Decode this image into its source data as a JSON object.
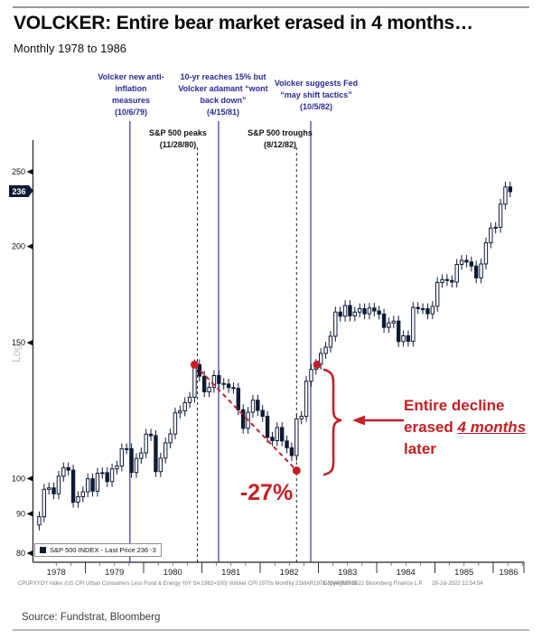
{
  "header": {
    "title": "VOLCKER: Entire bear market erased in 4 months…",
    "subtitle": "Monthly 1978 to 1986"
  },
  "annotations": {
    "note1": "Volcker new anti-\ninflation\nmeasures\n(10/6/79)",
    "note2": "10-yr reaches 15% but\nVolcker adamant “wont\nback down”\n(4/15/81)",
    "note3": "Volcker suggests Fed\n“may shift tactics”\n(10/5/82)",
    "peaks": "S&P 500 peaks\n(11/28/80)",
    "troughs": "S&P 500 troughs\n(8/12/82)",
    "decline_pct": "-27%",
    "erased_line1": "Entire decline",
    "erased_line2_pre": "erased ",
    "erased_line2_em": "4 months",
    "erased_line3": "later"
  },
  "legend": {
    "label": "S&P 500 INDEX - Last Price 236  -3"
  },
  "axis": {
    "y_ticks": [
      250,
      200,
      150,
      100,
      90,
      80
    ],
    "last_price_badge": "236",
    "scale_label": "Log",
    "years": [
      "1978",
      "1979",
      "1980",
      "1981",
      "1982",
      "1983",
      "1984",
      "1985",
      "1986"
    ]
  },
  "footer": {
    "left": "CPUPXYOY Index (US CPI Urban Consumers Less Food & Energy YoY SA 1982=100) Volcker CPI 1970s  Monthly 21MAR1978-30APR1986",
    "copyright": "Copyright© 2022 Bloomberg Finance L.P.",
    "timestamp": "28-Jul-2022 12:54:54"
  },
  "source": "Source: Fundstrat, Bloomberg",
  "colors": {
    "red": "#c22026",
    "navy_text": "#2b2b96",
    "event_line_blue": "#4545a0",
    "candle_dark": "#0e1b35",
    "axis": "#222222"
  },
  "chart_data": {
    "type": "candlestick",
    "title": "S&P 500 INDEX monthly, Mar 1978 - Apr 1986",
    "yscale": "log",
    "ylim": [
      80,
      260
    ],
    "x_years": [
      "1978",
      "1979",
      "1980",
      "1981",
      "1982",
      "1983",
      "1984",
      "1985",
      "1986"
    ],
    "months_start": "1978-03",
    "months_end": "1986-04",
    "first_open": 87.04,
    "closes": [
      89.21,
      96.83,
      97.24,
      95.53,
      100.68,
      103.29,
      102.54,
      93.15,
      94.7,
      96.11,
      99.93,
      96.28,
      101.59,
      101.76,
      99.08,
      102.91,
      103.81,
      109.32,
      109.32,
      101.82,
      106.16,
      107.94,
      114.16,
      113.66,
      102.09,
      106.29,
      111.24,
      114.24,
      121.67,
      122.38,
      125.46,
      127.47,
      140.52,
      135.76,
      129.55,
      131.27,
      136.0,
      132.81,
      132.59,
      131.21,
      130.92,
      122.79,
      116.18,
      121.89,
      126.35,
      122.55,
      120.4,
      113.11,
      111.96,
      116.44,
      111.88,
      109.61,
      107.09,
      119.51,
      120.42,
      133.71,
      138.54,
      140.64,
      145.3,
      148.06,
      152.96,
      164.42,
      162.39,
      167.64,
      162.56,
      164.4,
      166.07,
      163.55,
      166.4,
      164.93,
      163.41,
      157.06,
      159.18,
      160.05,
      150.55,
      153.18,
      150.66,
      166.68,
      166.1,
      166.09,
      163.58,
      167.24,
      179.63,
      181.18,
      180.66,
      179.83,
      189.55,
      191.85,
      190.92,
      188.63,
      182.08,
      189.82,
      202.17,
      211.28,
      211.78,
      226.92,
      238.9,
      235.52
    ],
    "key_points": {
      "peak_date": "11/28/80",
      "peak_value": 140.5,
      "trough_date": "8/12/82",
      "trough_value": 102.4,
      "decline_pct": "-27%",
      "erased_event_date": "10/5/82",
      "last_price": 236,
      "last_change": -3
    },
    "event_dates_blue": [
      "10/6/79",
      "4/15/81",
      "10/5/82"
    ],
    "event_dates_dashed": [
      "11/28/80",
      "8/12/82"
    ],
    "legend_position": "bottom-left-inside",
    "grid": false
  }
}
